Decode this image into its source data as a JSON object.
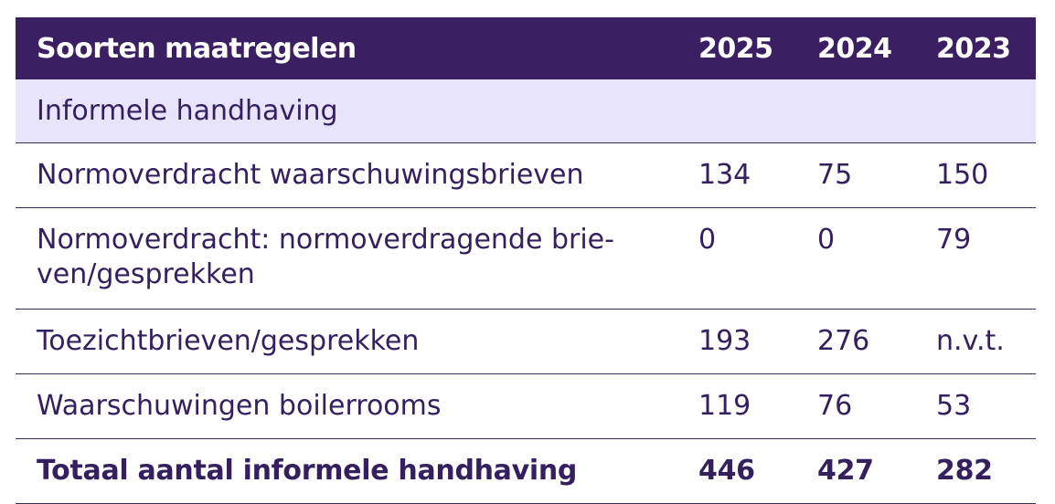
{
  "table": {
    "header": {
      "label": "Soorten maatregelen",
      "years": [
        "2025",
        "2024",
        "2023"
      ]
    },
    "section": "Informele handhaving",
    "rows": [
      {
        "label": "Normoverdracht waarschuwingsbrieven",
        "values": [
          "134",
          "75",
          "150"
        ]
      },
      {
        "label_line1": "Normoverdracht: normoverdragende brie-",
        "label_line2": "ven/gesprekken",
        "values": [
          "0",
          "0",
          "79"
        ]
      },
      {
        "label": "Toezichtbrieven/gesprekken",
        "values": [
          "193",
          "276",
          "n.v.t."
        ]
      },
      {
        "label": "Waarschuwingen boilerrooms",
        "values": [
          "119",
          "76",
          "53"
        ]
      }
    ],
    "total": {
      "label": "Totaal aantal informele handhaving",
      "values": [
        "446",
        "427",
        "282"
      ]
    }
  }
}
